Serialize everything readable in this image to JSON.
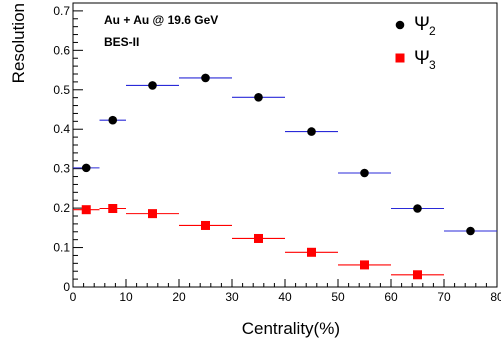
{
  "chart_data": {
    "type": "scatter",
    "xlabel": "Centrality(%)",
    "ylabel": "Resolution",
    "xlim": [
      0,
      80
    ],
    "ylim": [
      0,
      0.72
    ],
    "x_ticks": [
      "0",
      "10",
      "20",
      "30",
      "40",
      "50",
      "60",
      "70",
      "80"
    ],
    "y_ticks": [
      "0",
      "0.1",
      "0.2",
      "0.3",
      "0.4",
      "0.5",
      "0.6",
      "0.7"
    ],
    "annotations": [
      "Au + Au @ 19.6 GeV",
      "BES-II"
    ],
    "legend_position": "top-right",
    "grid": false,
    "series": [
      {
        "name": "Ψ",
        "subscript": "2",
        "marker": "circle",
        "color": "#000000",
        "error_bar_color": "#2a2ad8",
        "points": [
          {
            "x": 2.5,
            "x_low": 0,
            "x_high": 5,
            "y": 0.302
          },
          {
            "x": 7.5,
            "x_low": 5,
            "x_high": 10,
            "y": 0.423
          },
          {
            "x": 15,
            "x_low": 10,
            "x_high": 20,
            "y": 0.511
          },
          {
            "x": 25,
            "x_low": 20,
            "x_high": 30,
            "y": 0.53
          },
          {
            "x": 35,
            "x_low": 30,
            "x_high": 40,
            "y": 0.481
          },
          {
            "x": 45,
            "x_low": 40,
            "x_high": 50,
            "y": 0.394
          },
          {
            "x": 55,
            "x_low": 50,
            "x_high": 60,
            "y": 0.289
          },
          {
            "x": 65,
            "x_low": 60,
            "x_high": 70,
            "y": 0.199
          },
          {
            "x": 75,
            "x_low": 70,
            "x_high": 80,
            "y": 0.142
          }
        ]
      },
      {
        "name": "Ψ",
        "subscript": "3",
        "marker": "square",
        "color": "#ff0000",
        "error_bar_color": "#ff0000",
        "points": [
          {
            "x": 2.5,
            "x_low": 0,
            "x_high": 5,
            "y": 0.196
          },
          {
            "x": 7.5,
            "x_low": 5,
            "x_high": 10,
            "y": 0.199
          },
          {
            "x": 15,
            "x_low": 10,
            "x_high": 20,
            "y": 0.186
          },
          {
            "x": 25,
            "x_low": 20,
            "x_high": 30,
            "y": 0.156
          },
          {
            "x": 35,
            "x_low": 30,
            "x_high": 40,
            "y": 0.123
          },
          {
            "x": 45,
            "x_low": 40,
            "x_high": 50,
            "y": 0.088
          },
          {
            "x": 55,
            "x_low": 50,
            "x_high": 60,
            "y": 0.056
          },
          {
            "x": 65,
            "x_low": 60,
            "x_high": 70,
            "y": 0.031
          }
        ]
      }
    ]
  }
}
